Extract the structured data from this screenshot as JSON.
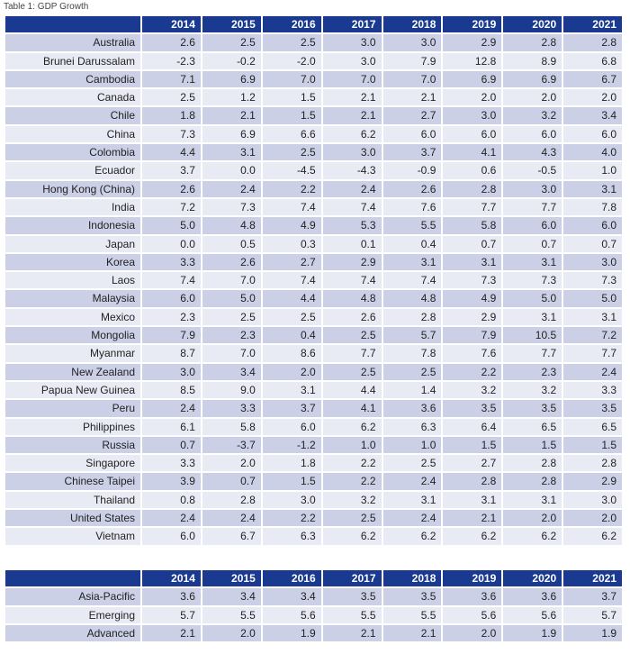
{
  "caption": "Table 1: GDP Growth",
  "main_table": {
    "years": [
      "2014",
      "2015",
      "2016",
      "2017",
      "2018",
      "2019",
      "2020",
      "2021"
    ],
    "rows": [
      {
        "name": "Australia",
        "values": [
          "2.6",
          "2.5",
          "2.5",
          "3.0",
          "3.0",
          "2.9",
          "2.8",
          "2.8"
        ]
      },
      {
        "name": "Brunei Darussalam",
        "values": [
          "-2.3",
          "-0.2",
          "-2.0",
          "3.0",
          "7.9",
          "12.8",
          "8.9",
          "6.8"
        ]
      },
      {
        "name": "Cambodia",
        "values": [
          "7.1",
          "6.9",
          "7.0",
          "7.0",
          "7.0",
          "6.9",
          "6.9",
          "6.7"
        ]
      },
      {
        "name": "Canada",
        "values": [
          "2.5",
          "1.2",
          "1.5",
          "2.1",
          "2.1",
          "2.0",
          "2.0",
          "2.0"
        ]
      },
      {
        "name": "Chile",
        "values": [
          "1.8",
          "2.1",
          "1.5",
          "2.1",
          "2.7",
          "3.0",
          "3.2",
          "3.4"
        ]
      },
      {
        "name": "China",
        "values": [
          "7.3",
          "6.9",
          "6.6",
          "6.2",
          "6.0",
          "6.0",
          "6.0",
          "6.0"
        ]
      },
      {
        "name": "Colombia",
        "values": [
          "4.4",
          "3.1",
          "2.5",
          "3.0",
          "3.7",
          "4.1",
          "4.3",
          "4.0"
        ]
      },
      {
        "name": "Ecuador",
        "values": [
          "3.7",
          "0.0",
          "-4.5",
          "-4.3",
          "-0.9",
          "0.6",
          "-0.5",
          "1.0"
        ]
      },
      {
        "name": "Hong Kong (China)",
        "values": [
          "2.6",
          "2.4",
          "2.2",
          "2.4",
          "2.6",
          "2.8",
          "3.0",
          "3.1"
        ]
      },
      {
        "name": "India",
        "values": [
          "7.2",
          "7.3",
          "7.4",
          "7.4",
          "7.6",
          "7.7",
          "7.7",
          "7.8"
        ]
      },
      {
        "name": "Indonesia",
        "values": [
          "5.0",
          "4.8",
          "4.9",
          "5.3",
          "5.5",
          "5.8",
          "6.0",
          "6.0"
        ]
      },
      {
        "name": "Japan",
        "values": [
          "0.0",
          "0.5",
          "0.3",
          "0.1",
          "0.4",
          "0.7",
          "0.7",
          "0.7"
        ]
      },
      {
        "name": "Korea",
        "values": [
          "3.3",
          "2.6",
          "2.7",
          "2.9",
          "3.1",
          "3.1",
          "3.1",
          "3.0"
        ]
      },
      {
        "name": "Laos",
        "values": [
          "7.4",
          "7.0",
          "7.4",
          "7.4",
          "7.4",
          "7.3",
          "7.3",
          "7.3"
        ]
      },
      {
        "name": "Malaysia",
        "values": [
          "6.0",
          "5.0",
          "4.4",
          "4.8",
          "4.8",
          "4.9",
          "5.0",
          "5.0"
        ]
      },
      {
        "name": "Mexico",
        "values": [
          "2.3",
          "2.5",
          "2.5",
          "2.6",
          "2.8",
          "2.9",
          "3.1",
          "3.1"
        ]
      },
      {
        "name": "Mongolia",
        "values": [
          "7.9",
          "2.3",
          "0.4",
          "2.5",
          "5.7",
          "7.9",
          "10.5",
          "7.2"
        ]
      },
      {
        "name": "Myanmar",
        "values": [
          "8.7",
          "7.0",
          "8.6",
          "7.7",
          "7.8",
          "7.6",
          "7.7",
          "7.7"
        ]
      },
      {
        "name": "New Zealand",
        "values": [
          "3.0",
          "3.4",
          "2.0",
          "2.5",
          "2.5",
          "2.2",
          "2.3",
          "2.4"
        ]
      },
      {
        "name": "Papua New Guinea",
        "values": [
          "8.5",
          "9.0",
          "3.1",
          "4.4",
          "1.4",
          "3.2",
          "3.2",
          "3.3"
        ]
      },
      {
        "name": "Peru",
        "values": [
          "2.4",
          "3.3",
          "3.7",
          "4.1",
          "3.6",
          "3.5",
          "3.5",
          "3.5"
        ]
      },
      {
        "name": "Philippines",
        "values": [
          "6.1",
          "5.8",
          "6.0",
          "6.2",
          "6.3",
          "6.4",
          "6.5",
          "6.5"
        ]
      },
      {
        "name": "Russia",
        "values": [
          "0.7",
          "-3.7",
          "-1.2",
          "1.0",
          "1.0",
          "1.5",
          "1.5",
          "1.5"
        ]
      },
      {
        "name": "Singapore",
        "values": [
          "3.3",
          "2.0",
          "1.8",
          "2.2",
          "2.5",
          "2.7",
          "2.8",
          "2.8"
        ]
      },
      {
        "name": "Chinese Taipei",
        "values": [
          "3.9",
          "0.7",
          "1.5",
          "2.2",
          "2.4",
          "2.8",
          "2.8",
          "2.9"
        ]
      },
      {
        "name": "Thailand",
        "values": [
          "0.8",
          "2.8",
          "3.0",
          "3.2",
          "3.1",
          "3.1",
          "3.1",
          "3.0"
        ]
      },
      {
        "name": "United States",
        "values": [
          "2.4",
          "2.4",
          "2.2",
          "2.5",
          "2.4",
          "2.1",
          "2.0",
          "2.0"
        ]
      },
      {
        "name": "Vietnam",
        "values": [
          "6.0",
          "6.7",
          "6.3",
          "6.2",
          "6.2",
          "6.2",
          "6.2",
          "6.2"
        ]
      }
    ]
  },
  "summary_table": {
    "years": [
      "2014",
      "2015",
      "2016",
      "2017",
      "2018",
      "2019",
      "2020",
      "2021"
    ],
    "rows": [
      {
        "name": "Asia-Pacific",
        "values": [
          "3.6",
          "3.4",
          "3.4",
          "3.5",
          "3.5",
          "3.6",
          "3.6",
          "3.7"
        ]
      },
      {
        "name": "Emerging",
        "values": [
          "5.7",
          "5.5",
          "5.6",
          "5.5",
          "5.5",
          "5.6",
          "5.6",
          "5.7"
        ]
      },
      {
        "name": "Advanced",
        "values": [
          "2.1",
          "2.0",
          "1.9",
          "2.1",
          "2.1",
          "2.0",
          "1.9",
          "1.9"
        ]
      }
    ]
  },
  "colors": {
    "header_bg": "#1a3a91",
    "row_dark": "#ccd0e6",
    "row_light": "#e9ebf4"
  }
}
